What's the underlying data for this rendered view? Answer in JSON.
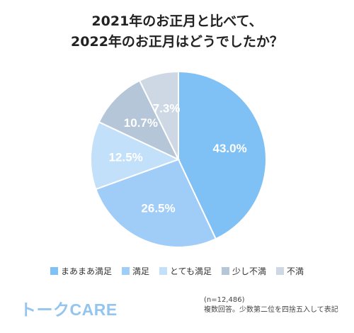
{
  "title": {
    "line1": "2021年のお正月と比べて、",
    "line2": "2022年のお正月はどうでしたか？"
  },
  "chart_data": {
    "type": "pie",
    "title": "2021年のお正月と比べて、2022年のお正月はどうでしたか？",
    "categories": [
      "まあまあ満足",
      "満足",
      "とても満足",
      "少し不満",
      "不満"
    ],
    "values": [
      43.0,
      26.5,
      12.5,
      10.7,
      7.3
    ],
    "value_labels": [
      "43.0%",
      "26.5%",
      "12.5%",
      "10.7%",
      "7.3%"
    ],
    "colors": [
      "#7fc0f5",
      "#9fcdf7",
      "#c3e0fa",
      "#b4c6d8",
      "#cdd8e4"
    ],
    "start": "top",
    "direction": "clockwise",
    "legend": "bottom"
  },
  "logo": "トークCARE",
  "notes": {
    "sample": "(n=12,486)",
    "footnote": "複数回答。少数第二位を四捨五入して表記"
  }
}
